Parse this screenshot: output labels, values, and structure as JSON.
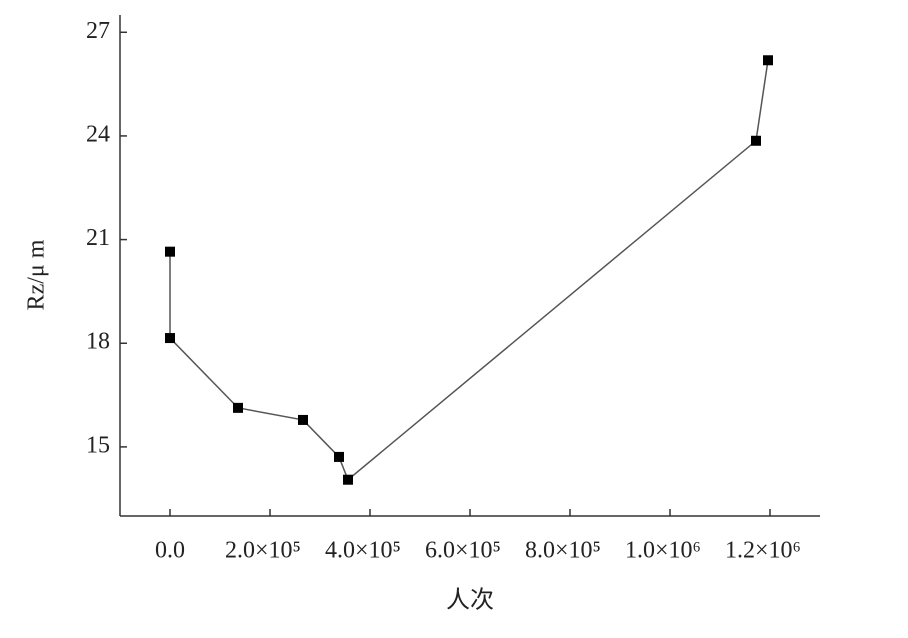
{
  "chart_data": {
    "type": "line",
    "x_label": "人次",
    "y_label": "Rz/μ m",
    "x": [
      0,
      0,
      136000,
      266000,
      338000,
      356000,
      1172000,
      1196000
    ],
    "series": [
      {
        "color": "#000000",
        "values": [
          20.65,
          18.15,
          16.13,
          15.78,
          14.71,
          14.05,
          23.86,
          26.19
        ]
      }
    ],
    "xlim": [
      -100000,
      1300000
    ],
    "xticks": [
      {
        "value": 0,
        "label": "0.0"
      },
      {
        "value": 200000,
        "label": "2.0×10⁵"
      },
      {
        "value": 400000,
        "label": "4.0×10⁵"
      },
      {
        "value": 600000,
        "label": "6.0×10⁵"
      },
      {
        "value": 800000,
        "label": "8.0×10⁵"
      },
      {
        "value": 1000000,
        "label": "1.0×10⁶"
      },
      {
        "value": 1200000,
        "label": "1.2×10⁶"
      }
    ],
    "ylim": [
      13,
      27.5
    ],
    "yticks": [
      15,
      18,
      21,
      24,
      27
    ],
    "grid": false
  }
}
